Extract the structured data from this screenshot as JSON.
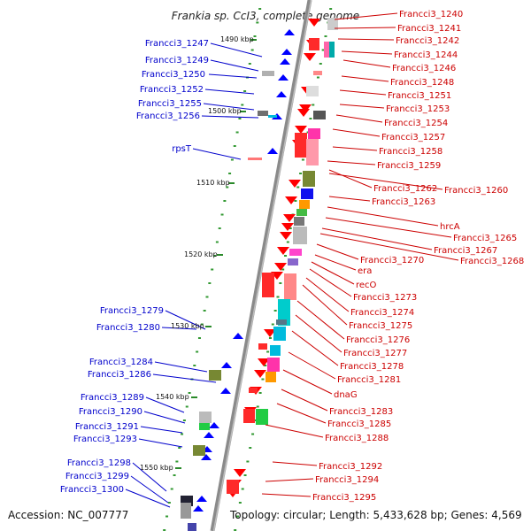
{
  "title": "Frankia sp. CcI3, complete genome",
  "footer": {
    "accession": "Accession: NC_007777",
    "topology": "Topology: circular; Length: 5,433,628 bp; Genes: 4,569"
  },
  "colors": {
    "backbone": "#888888",
    "tick": "#339933",
    "left_label": "#0000cc",
    "right_label": "#cc0000",
    "forward_gene": "#ff0000",
    "reverse_gene": "#0000ff"
  },
  "ruler_labels": [
    "1490 kbp",
    "1500 kbp",
    "1510 kbp",
    "1520 kbp",
    "1530 kbp",
    "1540 kbp",
    "1550 kbp"
  ],
  "left_labels": [
    "Francci3_1247",
    "Francci3_1249",
    "Francci3_1250",
    "Francci3_1252",
    "Francci3_1255",
    "Francci3_1256",
    "rpsT",
    "Francci3_1279",
    "Francci3_1280",
    "Francci3_1284",
    "Francci3_1286",
    "Francci3_1289",
    "Francci3_1290",
    "Francci3_1291",
    "Francci3_1293",
    "Francci3_1298",
    "Francci3_1299",
    "Francci3_1300"
  ],
  "right_labels": [
    "Francci3_1240",
    "Francci3_1241",
    "Francci3_1242",
    "Francci3_1244",
    "Francci3_1246",
    "Francci3_1248",
    "Francci3_1251",
    "Francci3_1253",
    "Francci3_1254",
    "Francci3_1257",
    "Francci3_1258",
    "Francci3_1259",
    "Francci3_1262",
    "Francci3_1260",
    "Francci3_1263",
    "hrcA",
    "Francci3_1265",
    "Francci3_1267",
    "Francci3_1268",
    "Francci3_1270",
    "era",
    "recO",
    "Francci3_1273",
    "Francci3_1274",
    "Francci3_1275",
    "Francci3_1276",
    "Francci3_1277",
    "Francci3_1278",
    "Francci3_1281",
    "dnaG",
    "Francci3_1283",
    "Francci3_1285",
    "Francci3_1288",
    "Francci3_1292",
    "Francci3_1294",
    "Francci3_1295"
  ]
}
